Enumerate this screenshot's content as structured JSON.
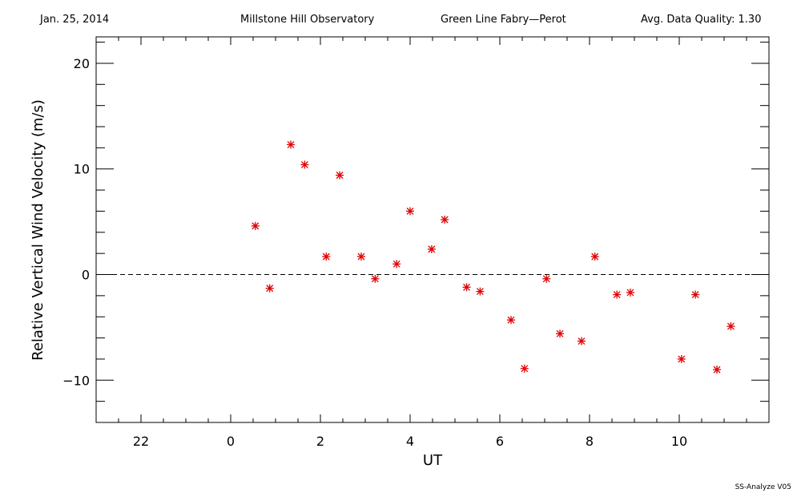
{
  "header": {
    "date": "Jan. 25, 2014",
    "observatory": "Millstone Hill Observatory",
    "instrument": "Green Line Fabry—Perot",
    "quality": "Avg. Data Quality: 1.30"
  },
  "footer": {
    "version": "SS-Analyze V05"
  },
  "chart_data": {
    "type": "scatter",
    "xlabel": "UT",
    "ylabel": "Relative Vertical Wind Velocity (m/s)",
    "xlim": [
      -3.0,
      12.0
    ],
    "ylim": [
      -14,
      22.5
    ],
    "x_major_ticks": [
      -2,
      0,
      2,
      4,
      6,
      8,
      10
    ],
    "x_tick_labels": [
      "22",
      "0",
      "2",
      "4",
      "6",
      "8",
      "10"
    ],
    "x_minor_step": 0.5,
    "y_major_ticks": [
      -10,
      0,
      10,
      20
    ],
    "y_tick_labels": [
      "−10",
      "0",
      "10",
      "20"
    ],
    "y_minor_step": 2,
    "reference_line": {
      "y": 0,
      "style": "dashed"
    },
    "marker": "asterisk",
    "marker_color": "#e00000",
    "grid": false,
    "series": [
      {
        "x": [
          0.55,
          0.87,
          1.34,
          1.65,
          2.13,
          2.43,
          2.91,
          3.22,
          3.7,
          4.0,
          4.48,
          4.77,
          5.26,
          5.56,
          6.25,
          6.55,
          7.04,
          7.34,
          7.82,
          8.12,
          8.61,
          8.91,
          10.05,
          10.36,
          10.84,
          11.15
        ],
        "y": [
          4.6,
          -1.3,
          12.3,
          10.4,
          1.7,
          9.4,
          1.7,
          -0.4,
          1.0,
          6.0,
          2.4,
          5.2,
          -1.2,
          -1.6,
          -4.3,
          -8.9,
          -0.4,
          -5.6,
          -6.3,
          1.7,
          -1.9,
          -1.7,
          -8.0,
          -1.9,
          -9.0,
          -4.9
        ]
      }
    ]
  }
}
